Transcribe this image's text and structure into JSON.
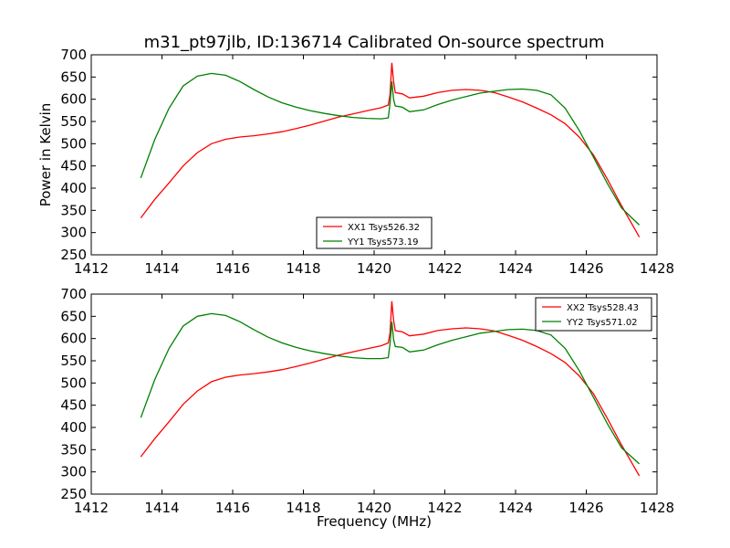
{
  "figure": {
    "title": "m31_pt97jlb, ID:136714 Calibrated On-source spectrum"
  },
  "chart_data": [
    {
      "type": "line",
      "panel": "top",
      "xlabel": "",
      "ylabel": "Power in Kelvin",
      "xlim": [
        1412,
        1428
      ],
      "ylim": [
        250,
        700
      ],
      "xticks": [
        1412,
        1414,
        1416,
        1418,
        1420,
        1422,
        1424,
        1426,
        1428
      ],
      "yticks": [
        250,
        300,
        350,
        400,
        450,
        500,
        550,
        600,
        650,
        700
      ],
      "legend_position": "lower-center",
      "series": [
        {
          "name": "XX1 Tsys526.32",
          "color": "#ff0000",
          "x": [
            1413.4,
            1413.8,
            1414.2,
            1414.6,
            1415.0,
            1415.4,
            1415.8,
            1416.2,
            1416.6,
            1417.0,
            1417.4,
            1417.8,
            1418.2,
            1418.6,
            1419.0,
            1419.4,
            1419.8,
            1420.2,
            1420.4,
            1420.45,
            1420.5,
            1420.55,
            1420.6,
            1420.8,
            1421.0,
            1421.4,
            1421.8,
            1422.2,
            1422.6,
            1423.0,
            1423.4,
            1423.8,
            1424.2,
            1424.6,
            1425.0,
            1425.4,
            1425.8,
            1426.2,
            1426.6,
            1427.0,
            1427.5
          ],
          "y": [
            333,
            375,
            412,
            450,
            480,
            500,
            510,
            515,
            518,
            522,
            527,
            534,
            542,
            551,
            560,
            567,
            574,
            581,
            587,
            610,
            682,
            640,
            615,
            612,
            603,
            607,
            615,
            620,
            622,
            620,
            615,
            605,
            594,
            580,
            565,
            545,
            515,
            475,
            420,
            360,
            290
          ]
        },
        {
          "name": "YY1 Tsys573.19",
          "color": "#008000",
          "x": [
            1413.4,
            1413.8,
            1414.2,
            1414.6,
            1415.0,
            1415.4,
            1415.8,
            1416.2,
            1416.6,
            1417.0,
            1417.4,
            1417.8,
            1418.2,
            1418.6,
            1419.0,
            1419.4,
            1419.8,
            1420.2,
            1420.4,
            1420.45,
            1420.5,
            1420.55,
            1420.6,
            1420.8,
            1421.0,
            1421.4,
            1421.8,
            1422.2,
            1422.6,
            1423.0,
            1423.4,
            1423.8,
            1424.2,
            1424.6,
            1425.0,
            1425.4,
            1425.8,
            1426.2,
            1426.6,
            1427.0,
            1427.5
          ],
          "y": [
            423,
            510,
            580,
            630,
            652,
            658,
            654,
            640,
            622,
            605,
            592,
            582,
            574,
            568,
            563,
            559,
            557,
            556,
            558,
            590,
            640,
            600,
            585,
            582,
            572,
            576,
            588,
            598,
            606,
            614,
            618,
            622,
            623,
            620,
            610,
            580,
            530,
            470,
            410,
            355,
            317
          ]
        }
      ]
    },
    {
      "type": "line",
      "panel": "bottom",
      "xlabel": "Frequency (MHz)",
      "ylabel": "",
      "xlim": [
        1412,
        1428
      ],
      "ylim": [
        250,
        700
      ],
      "xticks": [
        1412,
        1414,
        1416,
        1418,
        1420,
        1422,
        1424,
        1426,
        1428
      ],
      "yticks": [
        250,
        300,
        350,
        400,
        450,
        500,
        550,
        600,
        650,
        700
      ],
      "legend_position": "upper-right",
      "series": [
        {
          "name": "XX2 Tsys528.43",
          "color": "#ff0000",
          "x": [
            1413.4,
            1413.8,
            1414.2,
            1414.6,
            1415.0,
            1415.4,
            1415.8,
            1416.2,
            1416.6,
            1417.0,
            1417.4,
            1417.8,
            1418.2,
            1418.6,
            1419.0,
            1419.4,
            1419.8,
            1420.2,
            1420.4,
            1420.45,
            1420.5,
            1420.55,
            1420.6,
            1420.8,
            1421.0,
            1421.4,
            1421.8,
            1422.2,
            1422.6,
            1423.0,
            1423.4,
            1423.8,
            1424.2,
            1424.6,
            1425.0,
            1425.4,
            1425.8,
            1426.2,
            1426.6,
            1427.0,
            1427.5
          ],
          "y": [
            334,
            375,
            413,
            452,
            482,
            503,
            513,
            518,
            521,
            525,
            530,
            537,
            545,
            554,
            563,
            570,
            577,
            584,
            590,
            612,
            684,
            642,
            618,
            615,
            606,
            610,
            618,
            622,
            624,
            622,
            617,
            607,
            596,
            582,
            566,
            546,
            516,
            476,
            420,
            360,
            291
          ]
        },
        {
          "name": "YY2 Tsys571.02",
          "color": "#008000",
          "x": [
            1413.4,
            1413.8,
            1414.2,
            1414.6,
            1415.0,
            1415.4,
            1415.8,
            1416.2,
            1416.6,
            1417.0,
            1417.4,
            1417.8,
            1418.2,
            1418.6,
            1419.0,
            1419.4,
            1419.8,
            1420.2,
            1420.4,
            1420.45,
            1420.5,
            1420.55,
            1420.6,
            1420.8,
            1421.0,
            1421.4,
            1421.8,
            1422.2,
            1422.6,
            1423.0,
            1423.4,
            1423.8,
            1424.2,
            1424.6,
            1425.0,
            1425.4,
            1425.8,
            1426.2,
            1426.6,
            1427.0,
            1427.5
          ],
          "y": [
            422,
            508,
            578,
            628,
            650,
            656,
            652,
            638,
            620,
            603,
            590,
            580,
            572,
            566,
            561,
            557,
            555,
            555,
            557,
            588,
            638,
            598,
            582,
            580,
            570,
            574,
            586,
            596,
            604,
            612,
            616,
            620,
            621,
            618,
            608,
            578,
            528,
            468,
            408,
            354,
            318
          ]
        }
      ]
    }
  ]
}
